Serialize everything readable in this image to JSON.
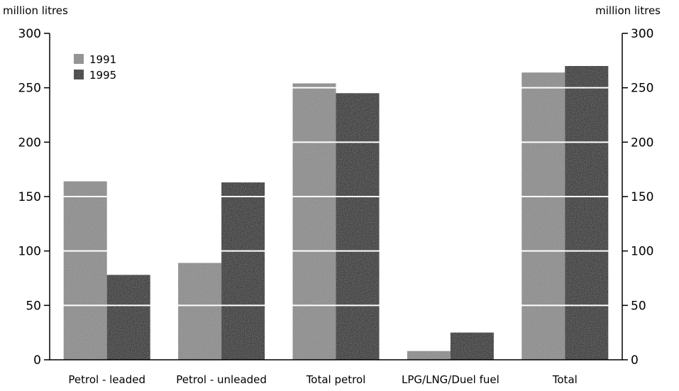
{
  "chart_data": {
    "type": "bar",
    "ylabel_left": "million litres",
    "ylabel_right": "million litres",
    "categories": [
      "Petrol - leaded",
      "Petrol - unleaded",
      "Total petrol",
      "LPG/LNG/Duel fuel",
      "Total"
    ],
    "series": [
      {
        "name": "1991",
        "values": [
          164,
          89,
          254,
          8,
          264
        ],
        "color": "#8a8a8a"
      },
      {
        "name": "1995",
        "values": [
          78,
          163,
          245,
          25,
          270
        ],
        "color": "#111111"
      }
    ],
    "ylim": [
      0,
      300
    ],
    "yticks": [
      0,
      50,
      100,
      150,
      200,
      250,
      300
    ],
    "grid": true,
    "legend_position": "top-left"
  }
}
